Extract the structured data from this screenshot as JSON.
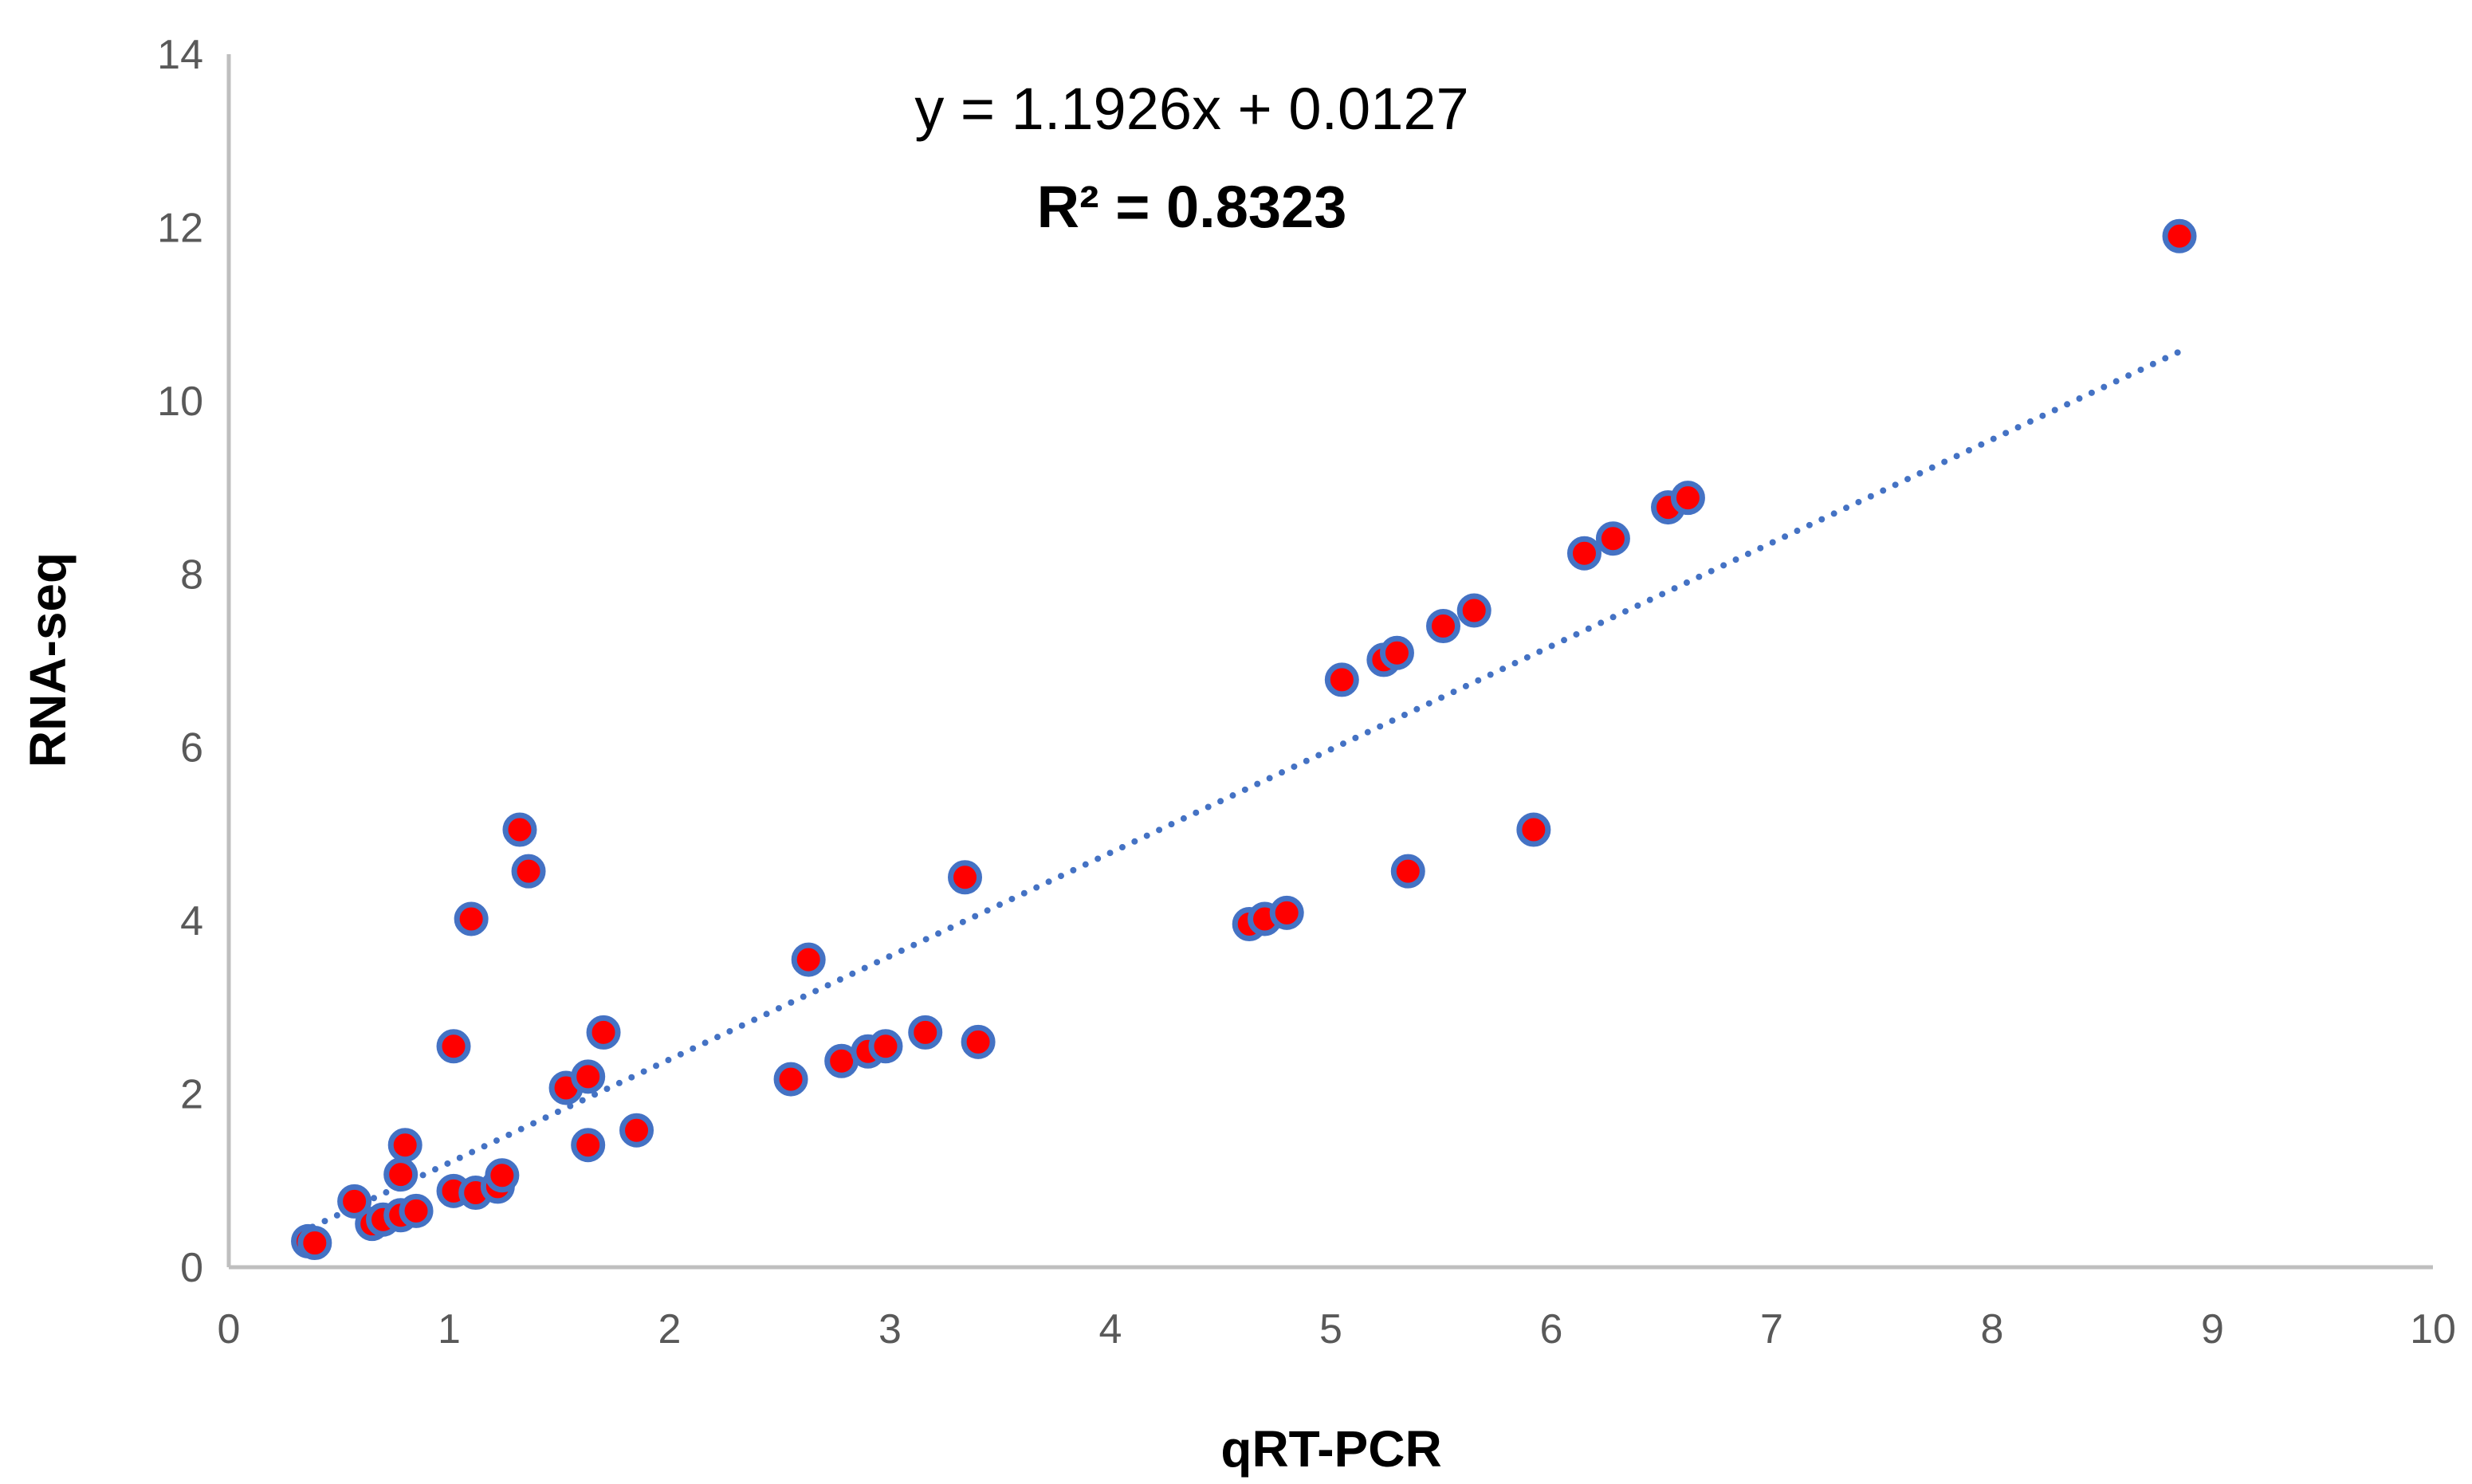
{
  "chart_data": {
    "type": "scatter",
    "title": "",
    "xlabel": "qRT-PCR",
    "ylabel": "RNA-seq",
    "xlim": [
      0,
      10
    ],
    "ylim": [
      0,
      14
    ],
    "x_ticks": [
      "0",
      "1",
      "2",
      "3",
      "4",
      "5",
      "6",
      "7",
      "8",
      "9",
      "10"
    ],
    "y_ticks": [
      "0",
      "2",
      "4",
      "6",
      "8",
      "10",
      "12",
      "14"
    ],
    "grid": false,
    "legend": "none",
    "annotations": {
      "equation": "y = 1.1926x + 0.0127",
      "r_squared": "R² = 0.8323"
    },
    "trendline": {
      "type": "linear",
      "style": "dotted",
      "slope": 1.1926,
      "intercept": 0.0127,
      "x_range": [
        0.38,
        8.85
      ],
      "color": "#4472c4"
    },
    "marker": {
      "fill": "#ff0000",
      "stroke": "#4472c4"
    },
    "points": [
      [
        0.36,
        0.3
      ],
      [
        0.39,
        0.28
      ],
      [
        0.57,
        0.76
      ],
      [
        0.65,
        0.5
      ],
      [
        0.7,
        0.55
      ],
      [
        0.78,
        0.6
      ],
      [
        0.78,
        1.07
      ],
      [
        0.8,
        1.41
      ],
      [
        0.85,
        0.65
      ],
      [
        1.02,
        0.88
      ],
      [
        1.02,
        2.55
      ],
      [
        1.1,
        4.02
      ],
      [
        1.12,
        0.86
      ],
      [
        1.22,
        0.93
      ],
      [
        1.24,
        1.06
      ],
      [
        1.32,
        5.05
      ],
      [
        1.36,
        4.57
      ],
      [
        1.53,
        2.07
      ],
      [
        1.63,
        2.2
      ],
      [
        1.63,
        1.41
      ],
      [
        1.7,
        2.71
      ],
      [
        1.85,
        1.58
      ],
      [
        2.55,
        2.17
      ],
      [
        2.63,
        3.55
      ],
      [
        2.78,
        2.38
      ],
      [
        2.9,
        2.49
      ],
      [
        2.98,
        2.55
      ],
      [
        3.16,
        2.71
      ],
      [
        3.34,
        4.5
      ],
      [
        3.4,
        2.6
      ],
      [
        4.63,
        3.96
      ],
      [
        4.7,
        4.02
      ],
      [
        4.8,
        4.09
      ],
      [
        5.05,
        6.78
      ],
      [
        5.24,
        7.01
      ],
      [
        5.3,
        7.09
      ],
      [
        5.35,
        4.57
      ],
      [
        5.51,
        7.4
      ],
      [
        5.65,
        7.58
      ],
      [
        5.92,
        5.05
      ],
      [
        6.15,
        8.24
      ],
      [
        6.28,
        8.41
      ],
      [
        6.53,
        8.77
      ],
      [
        6.62,
        8.88
      ],
      [
        8.85,
        11.9
      ]
    ]
  }
}
